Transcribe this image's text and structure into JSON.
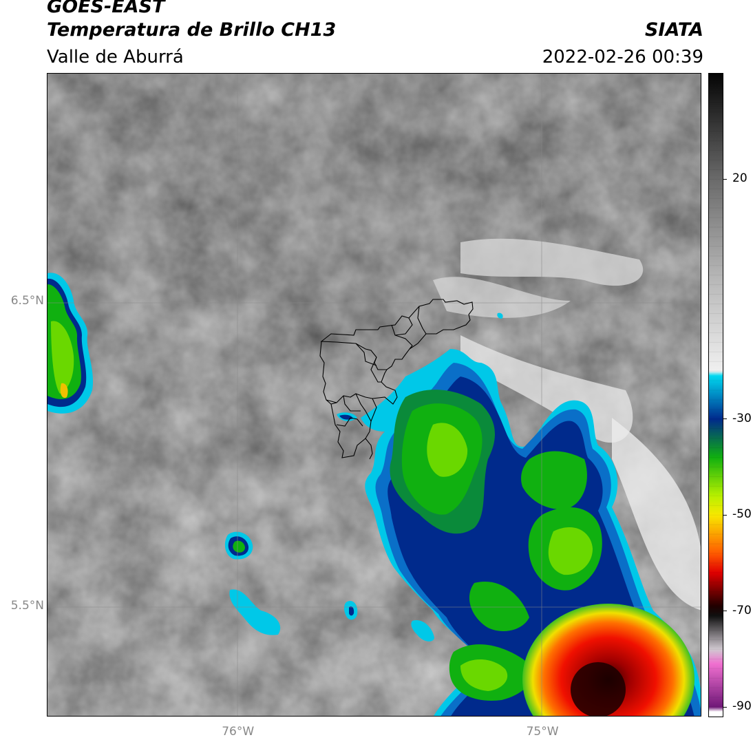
{
  "header": {
    "satellite": "GOES-EAST",
    "product": "Temperatura de Brillo CH13",
    "region": "Valle de Aburrá",
    "agency": "SIATA",
    "datetime": "2022-02-26 00:39"
  },
  "map": {
    "lat_ticks": [
      {
        "label": "6.5°N",
        "value": 6.5
      },
      {
        "label": "5.5°N",
        "value": 5.5
      }
    ],
    "lon_ticks": [
      {
        "label": "76°W",
        "value": -76.0
      },
      {
        "label": "75°W",
        "value": -75.0
      }
    ],
    "extent": {
      "lon_min": -76.62,
      "lon_max": -74.47,
      "lat_min": 5.14,
      "lat_max": 7.25
    }
  },
  "colorbar": {
    "range": [
      -92,
      42
    ],
    "ticks": [
      {
        "label": "20",
        "value": 20
      },
      {
        "label": "-30",
        "value": -30
      },
      {
        "label": "-50",
        "value": -50
      },
      {
        "label": "-70",
        "value": -70
      },
      {
        "label": "-90",
        "value": -90
      }
    ],
    "stops": [
      {
        "value": 42,
        "color": "#050505"
      },
      {
        "value": 20,
        "color": "#6a6a6a"
      },
      {
        "value": 0,
        "color": "#b5b5b5"
      },
      {
        "value": -20,
        "color": "#f0f0f0"
      },
      {
        "value": -21,
        "color": "#00d8f0"
      },
      {
        "value": -30,
        "color": "#002a8c"
      },
      {
        "value": -38,
        "color": "#10b010"
      },
      {
        "value": -46,
        "color": "#b8f000"
      },
      {
        "value": -50,
        "color": "#f8e800"
      },
      {
        "value": -58,
        "color": "#ff5a00"
      },
      {
        "value": -62,
        "color": "#e00000"
      },
      {
        "value": -69,
        "color": "#200000"
      },
      {
        "value": -71,
        "color": "#101010"
      },
      {
        "value": -78,
        "color": "#d0c8d0"
      },
      {
        "value": -81,
        "color": "#f070d0"
      },
      {
        "value": -90,
        "color": "#701878"
      },
      {
        "value": -91,
        "color": "#ffffff"
      }
    ]
  }
}
